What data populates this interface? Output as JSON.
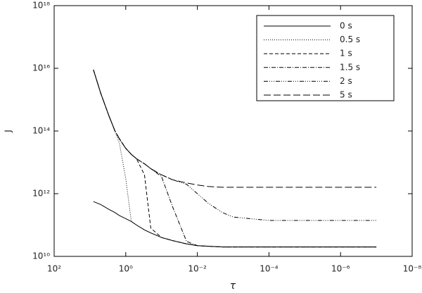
{
  "chart_data": {
    "type": "line",
    "x_label": "τ",
    "y_label": "J",
    "x_log": true,
    "y_log": true,
    "xlim": [
      100,
      1e-08
    ],
    "ylim": [
      10000000000.0,
      1e+18
    ],
    "xticks": [
      {
        "value": 100,
        "label": "10²"
      },
      {
        "value": 1,
        "label": "10⁰"
      },
      {
        "value": 0.01,
        "label": "10⁻²"
      },
      {
        "value": 0.0001,
        "label": "10⁻⁴"
      },
      {
        "value": 1e-06,
        "label": "10⁻⁶"
      },
      {
        "value": 1e-08,
        "label": "10⁻⁸"
      }
    ],
    "yticks": [
      {
        "value": 10000000000.0,
        "label": "10¹⁰"
      },
      {
        "value": 1000000000000.0,
        "label": "10¹²"
      },
      {
        "value": 100000000000000.0,
        "label": "10¹⁴"
      },
      {
        "value": 1e+16,
        "label": "10¹⁶"
      },
      {
        "value": 1e+18,
        "label": "10¹⁸"
      }
    ],
    "legend": "upper right",
    "x": [
      8,
      5,
      3,
      2,
      1.5,
      1,
      0.7,
      0.5,
      0.3,
      0.2,
      0.1,
      0.05,
      0.02,
      0.01,
      0.005,
      0.002,
      0.001,
      0.0001,
      1e-05,
      1e-06,
      1e-07
    ],
    "series": [
      {
        "name": "0 s",
        "color": "#000000",
        "dash": "none",
        "values": [
          560000000000.0,
          450000000000.0,
          320000000000.0,
          250000000000.0,
          200000000000.0,
          160000000000.0,
          130000000000.0,
          100000000000.0,
          70000000000.0,
          56000000000.0,
          40000000000.0,
          32000000000.0,
          25000000000.0,
          22000000000.0,
          21000000000.0,
          20000000000.0,
          20000000000.0,
          20000000000.0,
          20000000000.0,
          20000000000.0,
          20000000000.0
        ]
      },
      {
        "name": "0.5 s",
        "color": "#000000",
        "dash": "1,2",
        "values": [
          9000000000000000.0,
          1600000000000000.0,
          320000000000000.0,
          100000000000000.0,
          40000000000000.0,
          3000000000000.0,
          130000000000.0,
          100000000000.0,
          70000000000.0,
          56000000000.0,
          40000000000.0,
          32000000000.0,
          25000000000.0,
          22000000000.0,
          21000000000.0,
          20000000000.0,
          20000000000.0,
          20000000000.0,
          20000000000.0,
          20000000000.0,
          20000000000.0
        ]
      },
      {
        "name": "1 s",
        "color": "#000000",
        "dash": "5,3",
        "values": [
          9000000000000000.0,
          1600000000000000.0,
          320000000000000.0,
          100000000000000.0,
          56000000000000.0,
          28000000000000.0,
          18000000000000.0,
          13000000000000.0,
          4000000000000.0,
          80000000000.0,
          40000000000.0,
          32000000000.0,
          25000000000.0,
          22000000000.0,
          21000000000.0,
          20000000000.0,
          20000000000.0,
          20000000000.0,
          20000000000.0,
          20000000000.0,
          20000000000.0
        ]
      },
      {
        "name": "1.5 s",
        "color": "#000000",
        "dash": "6,2,1,2",
        "values": [
          9000000000000000.0,
          1600000000000000.0,
          320000000000000.0,
          100000000000000.0,
          56000000000000.0,
          28000000000000.0,
          18000000000000.0,
          13000000000000.0,
          9000000000000.0,
          6300000000000.0,
          3500000000000.0,
          400000000000.0,
          30000000000.0,
          22000000000.0,
          21000000000.0,
          20000000000.0,
          20000000000.0,
          20000000000.0,
          20000000000.0,
          20000000000.0,
          20000000000.0
        ]
      },
      {
        "name": "2 s",
        "color": "#000000",
        "dash": "6,2,1,2,1,2,1,2",
        "values": [
          9000000000000000.0,
          1600000000000000.0,
          320000000000000.0,
          100000000000000.0,
          56000000000000.0,
          28000000000000.0,
          18000000000000.0,
          13000000000000.0,
          9000000000000.0,
          6300000000000.0,
          4000000000000.0,
          2800000000000.0,
          2000000000000.0,
          1000000000000.0,
          500000000000.0,
          250000000000.0,
          180000000000.0,
          140000000000.0,
          140000000000.0,
          140000000000.0,
          140000000000.0
        ]
      },
      {
        "name": "5 s",
        "color": "#000000",
        "dash": "10,4",
        "values": [
          9000000000000000.0,
          1600000000000000.0,
          320000000000000.0,
          100000000000000.0,
          56000000000000.0,
          28000000000000.0,
          18000000000000.0,
          13000000000000.0,
          9000000000000.0,
          6300000000000.0,
          4000000000000.0,
          2800000000000.0,
          2200000000000.0,
          1900000000000.0,
          1700000000000.0,
          1600000000000.0,
          1600000000000.0,
          1600000000000.0,
          1600000000000.0,
          1600000000000.0,
          1600000000000.0
        ]
      }
    ]
  }
}
